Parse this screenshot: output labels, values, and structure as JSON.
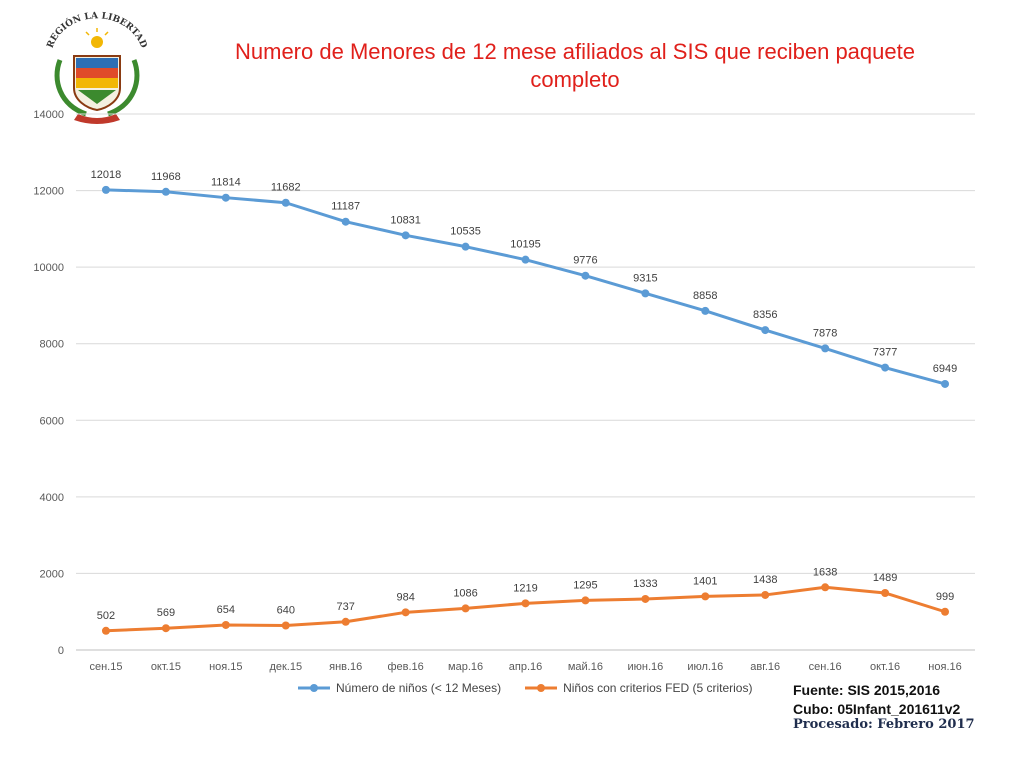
{
  "title": "Numero de Menores de 12 mese afiliados al SIS que reciben paquete completo",
  "logo": {
    "icon": "region-la-libertad-coat-of-arms-icon",
    "text": "REGIÓN LA LIBERTAD"
  },
  "source": {
    "line1": "Fuente: SIS 2015,2016",
    "line2": "Cubo: 05Infant_201611v2",
    "processed": "Procesado: Febrero 2017"
  },
  "colors": {
    "series1": "#5b9bd5",
    "series2": "#ed7d31",
    "title": "#e0201b",
    "grid": "#d9d9d9"
  },
  "chart_data": {
    "type": "line",
    "title": "Numero de Menores de 12 mese afiliados al SIS que reciben paquete completo",
    "categories": [
      "сен.15",
      "окт.15",
      "ноя.15",
      "дек.15",
      "янв.16",
      "фев.16",
      "мар.16",
      "апр.16",
      "май.16",
      "июн.16",
      "июл.16",
      "авг.16",
      "сен.16",
      "окт.16",
      "ноя.16"
    ],
    "ylim": [
      0,
      14000
    ],
    "yticks": [
      0,
      2000,
      4000,
      6000,
      8000,
      10000,
      12000,
      14000
    ],
    "grid": true,
    "legend": "bottom",
    "series": [
      {
        "name": "Número de niños (< 12 Meses)",
        "color": "#5b9bd5",
        "values": [
          12018,
          11968,
          11814,
          11682,
          11187,
          10831,
          10535,
          10195,
          9776,
          9315,
          8858,
          8356,
          7878,
          7377,
          6949
        ]
      },
      {
        "name": "Niños con criterios FED (5 criterios)",
        "color": "#ed7d31",
        "values": [
          502,
          569,
          654,
          640,
          737,
          984,
          1086,
          1219,
          1295,
          1333,
          1401,
          1438,
          1638,
          1489,
          999
        ]
      }
    ]
  }
}
